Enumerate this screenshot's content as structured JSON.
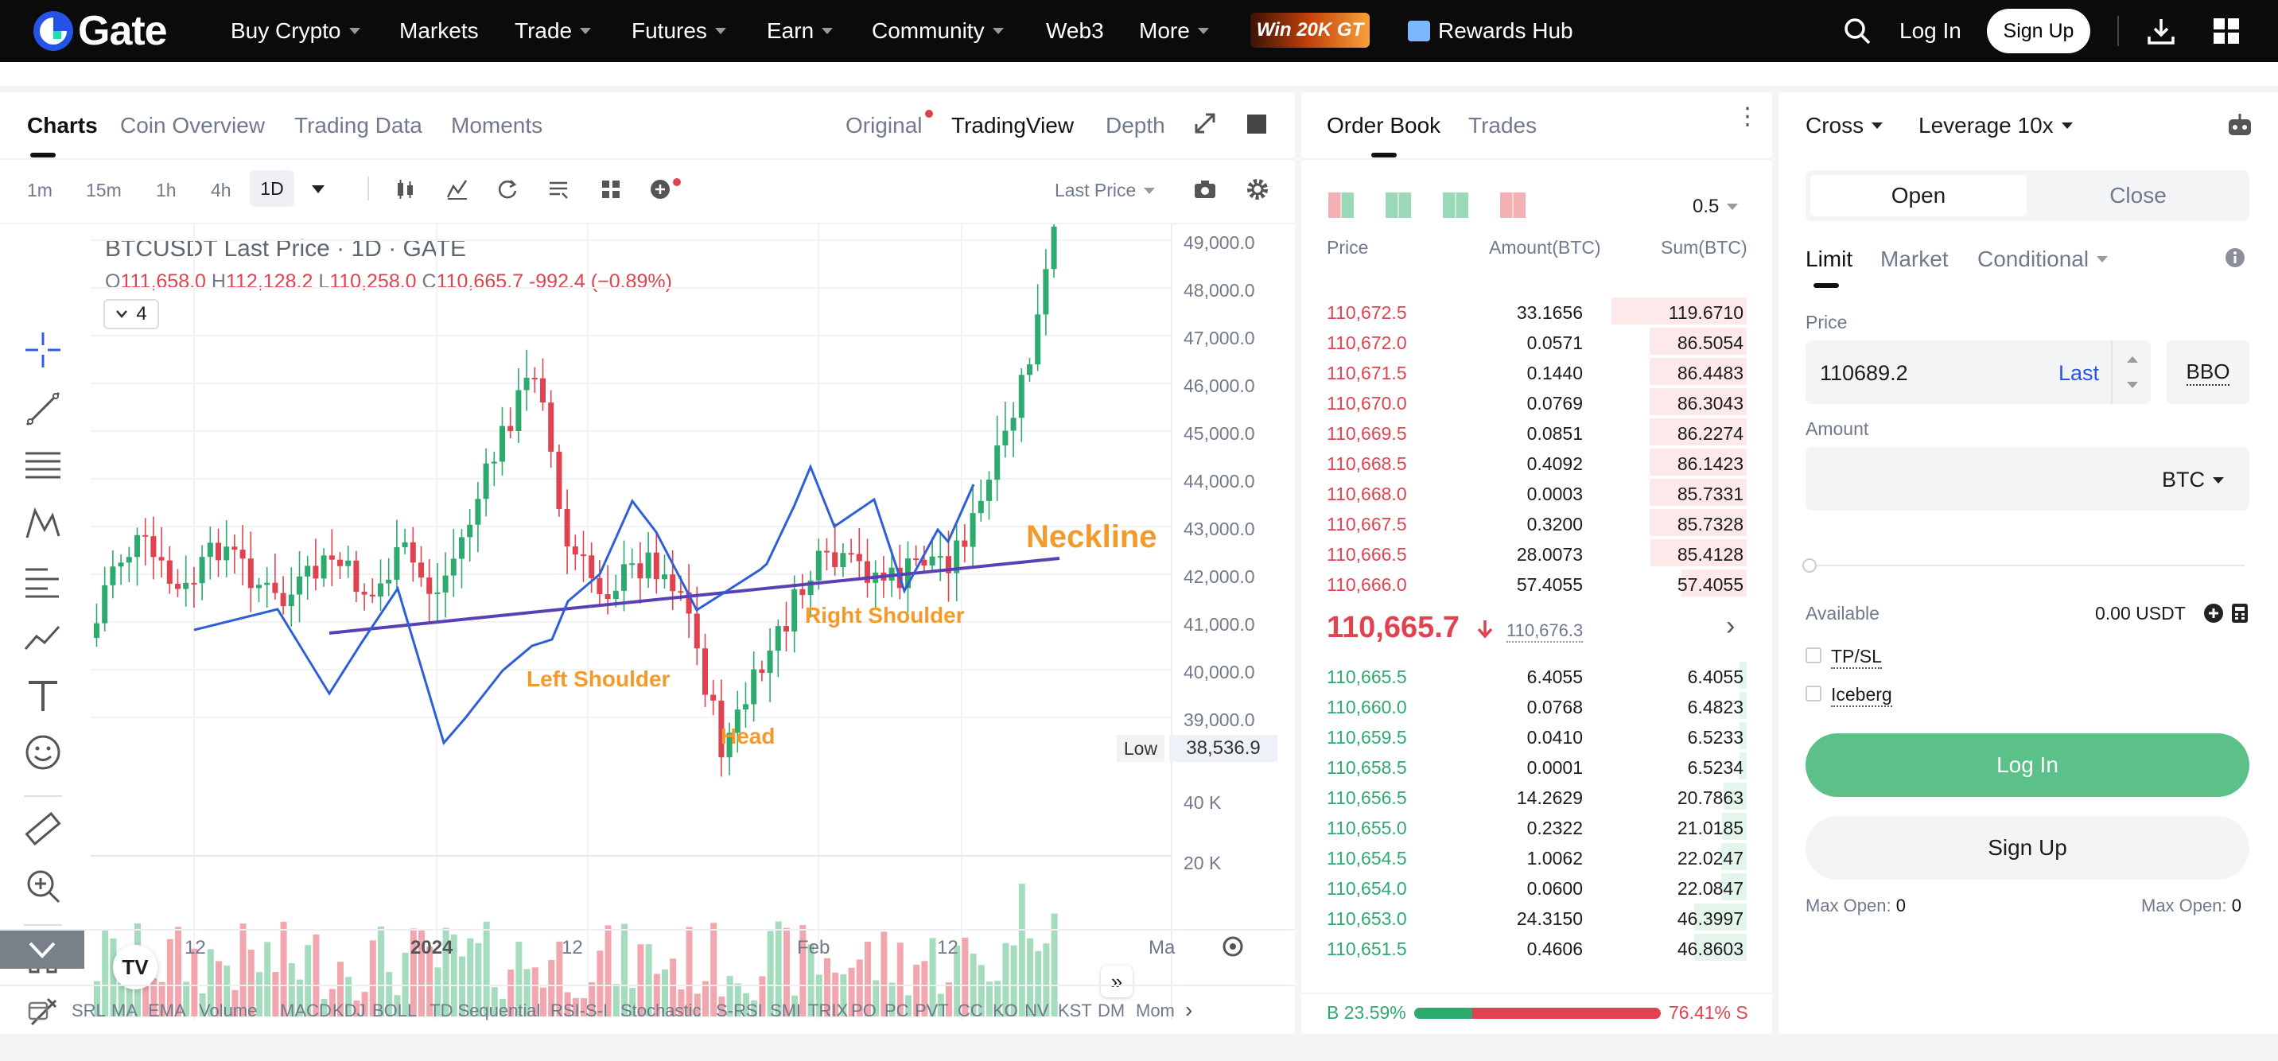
{
  "nav": {
    "logo": "Gate",
    "items": [
      "Buy Crypto",
      "Markets",
      "Trade",
      "Futures",
      "Earn",
      "Community",
      "Web3",
      "More"
    ],
    "promo": "Win 20K GT",
    "rewards": "Rewards Hub",
    "login": "Log In",
    "signup": "Sign Up"
  },
  "chart_panel": {
    "tabs": [
      "Charts",
      "Coin Overview",
      "Trading Data",
      "Moments"
    ],
    "views": [
      "Original",
      "TradingView",
      "Depth"
    ],
    "intervals": [
      "1m",
      "15m",
      "1h",
      "4h",
      "1D"
    ],
    "price_type": "Last Price",
    "legend": {
      "title": "BTCUSDT Last Price · 1D · GATE",
      "o_label": "O",
      "o": "111,658.0",
      "h_label": "H",
      "h": "112,128.2",
      "l_label": "L",
      "l": "110,258.0",
      "c_label": "C",
      "c": "110,665.7",
      "change": "-992.4 (−0.89%)",
      "collapsed_count": "4"
    },
    "y_ticks": [
      "49,000.0",
      "48,000.0",
      "47,000.0",
      "46,000.0",
      "45,000.0",
      "44,000.0",
      "43,000.0",
      "42,000.0",
      "41,000.0",
      "40,000.0",
      "39,000.0"
    ],
    "low_label": "Low",
    "low_value": "38,536.9",
    "vol_ticks": [
      "40 K",
      "20 K"
    ],
    "x_ticks": [
      "12",
      "2024",
      "12",
      "Feb",
      "12",
      "Ma"
    ],
    "annotations": {
      "neckline": "Neckline",
      "left_shoulder": "Left Shoulder",
      "head": "Head",
      "right_shoulder": "Right Shoulder"
    },
    "indicators": [
      "SRL",
      "MA",
      "EMA",
      "Volume",
      "MACD",
      "KDJ",
      "BOLL",
      "TD Sequential",
      "RSI-S-I",
      "Stochastic",
      "S-RSI",
      "SMI",
      "TRIX",
      "PO",
      "PC",
      "PVT",
      "CC",
      "KO",
      "NV",
      "KST",
      "DM",
      "Mom"
    ]
  },
  "chart_data": {
    "type": "candlestick",
    "y_range": [
      38536.9,
      49000
    ],
    "colors": {
      "up": "#2daa6e",
      "down": "#e0434f",
      "neckline": "#5b3fb5",
      "pattern": "#2f5fd8",
      "label": "#f39a2c"
    }
  },
  "orderbook": {
    "tabs": [
      "Order Book",
      "Trades"
    ],
    "precision": "0.5",
    "headers": [
      "Price",
      "Amount(BTC)",
      "Sum(BTC)"
    ],
    "asks": [
      [
        "110,672.5",
        "33.1656",
        "119.6710"
      ],
      [
        "110,672.0",
        "0.0571",
        "86.5054"
      ],
      [
        "110,671.5",
        "0.1440",
        "86.4483"
      ],
      [
        "110,670.0",
        "0.0769",
        "86.3043"
      ],
      [
        "110,669.5",
        "0.0851",
        "86.2274"
      ],
      [
        "110,668.5",
        "0.4092",
        "86.1423"
      ],
      [
        "110,668.0",
        "0.0003",
        "85.7331"
      ],
      [
        "110,667.5",
        "0.3200",
        "85.7328"
      ],
      [
        "110,666.5",
        "28.0073",
        "85.4128"
      ],
      [
        "110,666.0",
        "57.4055",
        "57.4055"
      ]
    ],
    "mid_price": "110,665.7",
    "mark_price": "110,676.3",
    "bids": [
      [
        "110,665.5",
        "6.4055",
        "6.4055"
      ],
      [
        "110,660.0",
        "0.0768",
        "6.4823"
      ],
      [
        "110,659.5",
        "0.0410",
        "6.5233"
      ],
      [
        "110,658.5",
        "0.0001",
        "6.5234"
      ],
      [
        "110,656.5",
        "14.2629",
        "20.7863"
      ],
      [
        "110,655.0",
        "0.2322",
        "21.0185"
      ],
      [
        "110,654.5",
        "1.0062",
        "22.0247"
      ],
      [
        "110,654.0",
        "0.0600",
        "22.0847"
      ],
      [
        "110,653.0",
        "24.3150",
        "46.3997"
      ],
      [
        "110,651.5",
        "0.4606",
        "46.8603"
      ]
    ],
    "ask_fill": [
      1.0,
      0.72,
      0.72,
      0.72,
      0.72,
      0.72,
      0.72,
      0.72,
      0.71,
      0.48
    ],
    "bid_fill": [
      0.05,
      0.055,
      0.055,
      0.055,
      0.17,
      0.18,
      0.19,
      0.19,
      0.39,
      0.39
    ],
    "buy_ratio": "B 23.59%",
    "sell_ratio": "76.41% S",
    "buy_fraction": 0.2359
  },
  "trade": {
    "margin_mode": "Cross",
    "leverage": "Leverage 10x",
    "open": "Open",
    "close": "Close",
    "order_types": [
      "Limit",
      "Market",
      "Conditional"
    ],
    "price_label": "Price",
    "price_value": "110689.2",
    "last": "Last",
    "bbo": "BBO",
    "amount_label": "Amount",
    "amount_unit": "BTC",
    "available_label": "Available",
    "available_value": "0.00 USDT",
    "tpsl": "TP/SL",
    "iceberg": "Iceberg",
    "login": "Log In",
    "signup": "Sign Up",
    "max_open_label": "Max Open:",
    "max_open_long": "0",
    "max_open_short": "0"
  }
}
